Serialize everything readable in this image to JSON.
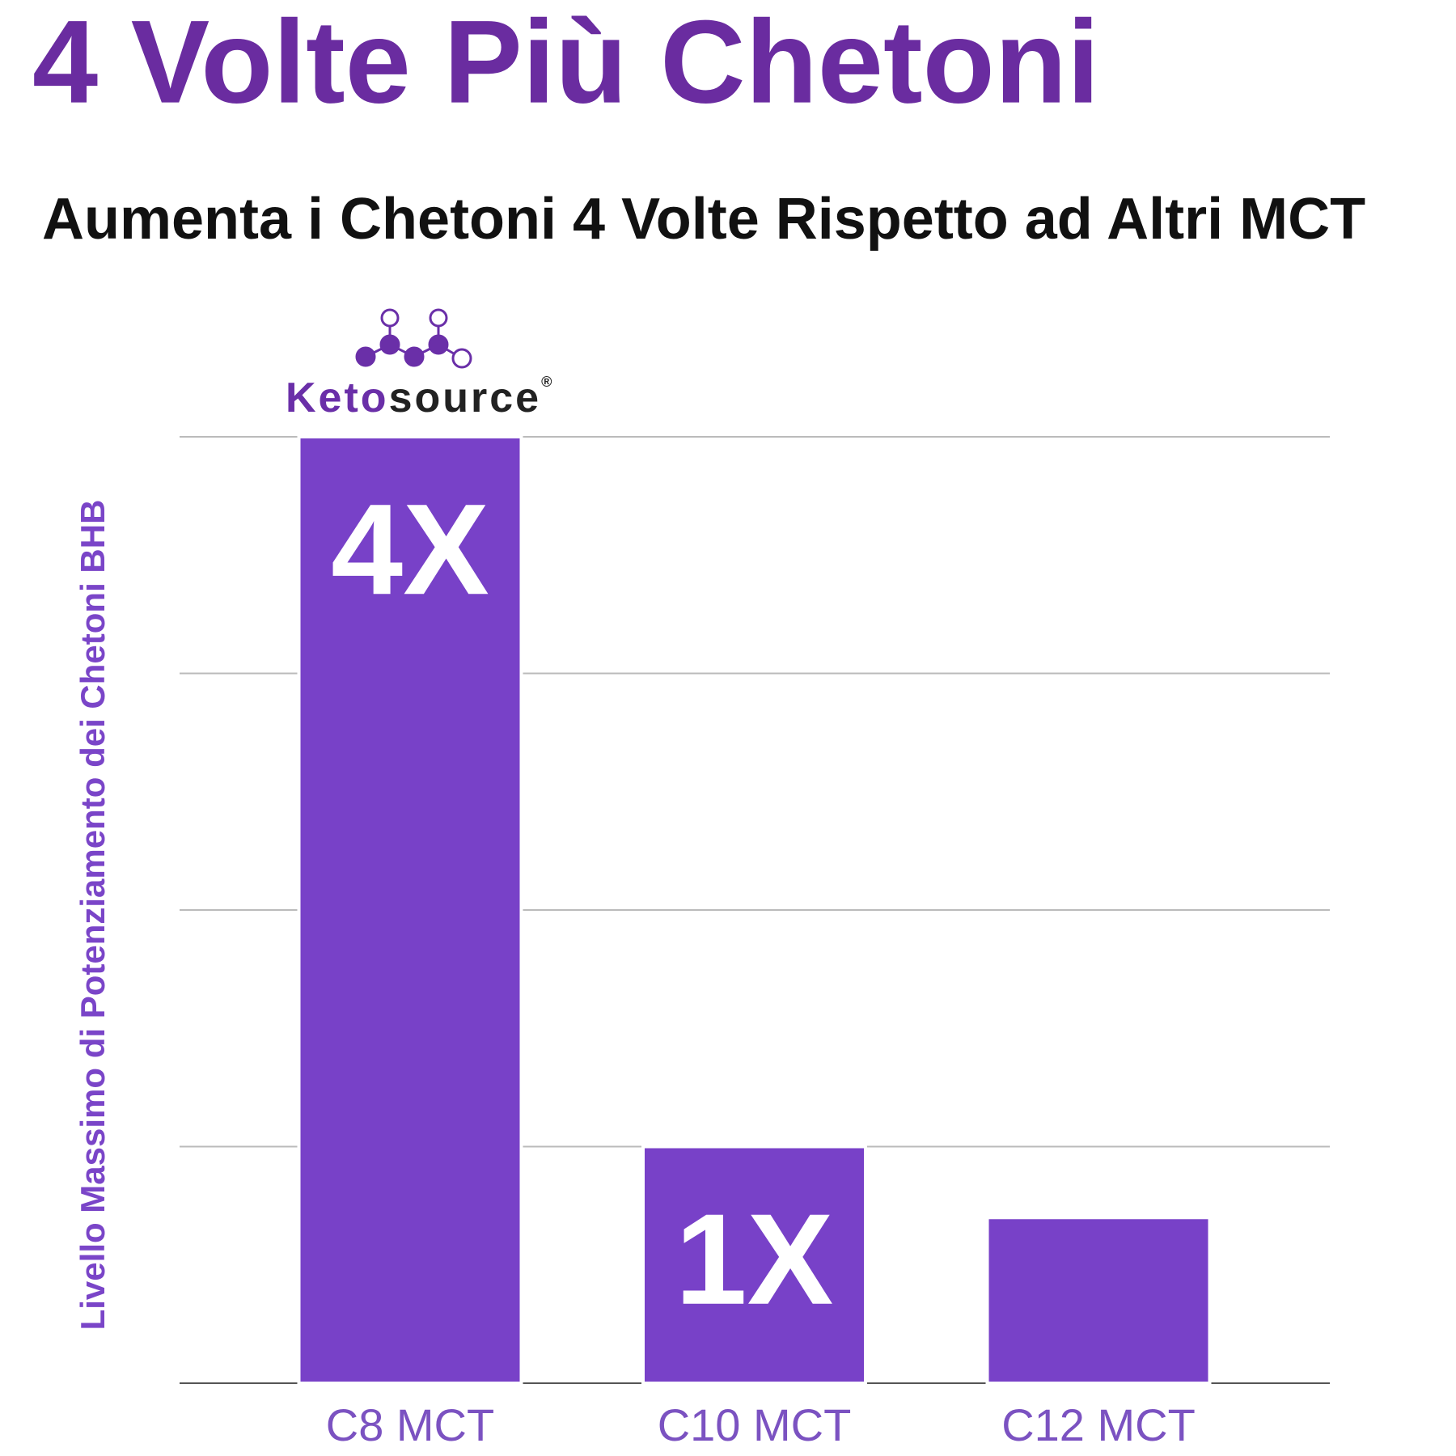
{
  "chart_data": {
    "type": "bar",
    "title": "4 Volte Più Chetoni",
    "subtitle": "Aumenta i Chetoni 4 Volte Rispetto ad Altri MCT",
    "brand": [
      "Keto",
      "source",
      "®"
    ],
    "y_label": "Livello Massimo di Potenziamento dei Chetoni BHB",
    "categories": [
      "C8 MCT",
      "C10 MCT",
      "C12 MCT"
    ],
    "values": [
      4,
      1,
      0.7
    ],
    "value_labels": [
      "4X",
      "1X",
      null
    ],
    "color": "#7841c8",
    "ylim": [
      0,
      4
    ],
    "yticks": [
      0,
      1,
      2,
      3,
      4
    ],
    "grid": true
  }
}
